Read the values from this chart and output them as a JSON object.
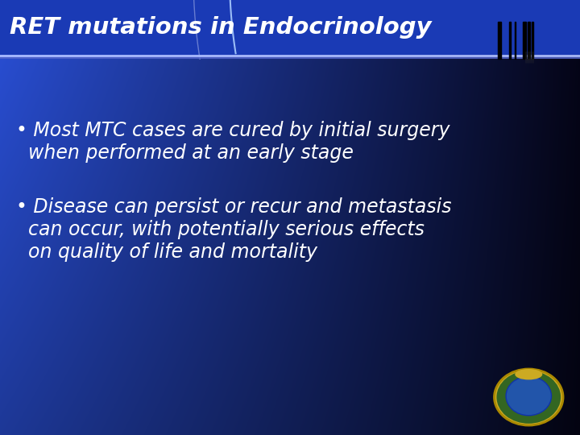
{
  "title": "RET mutations in Endocrinology",
  "title_bg_top": "#1a3ab5",
  "title_bg_bottom": "#1a3ab5",
  "title_text_color": "#ffffff",
  "title_fontsize": 21,
  "body_bg_left": "#2a50d8",
  "body_bg_right": "#0a0a30",
  "bullet1_line1": "• Most MTC cases are cured by initial surgery",
  "bullet1_line2": "  when performed at an early stage",
  "bullet2_line1": "• Disease can persist or recur and metastasis",
  "bullet2_line2": "  can occur, with potentially serious effects",
  "bullet2_line3": "  on quality of life and mortality",
  "text_color": "#ffffff",
  "text_fontsize": 17,
  "sep_color1": "#8899ee",
  "sep_color2": "#5566cc",
  "arc_fill_color": "#2244bb",
  "arc_line_color": "#aabbff"
}
